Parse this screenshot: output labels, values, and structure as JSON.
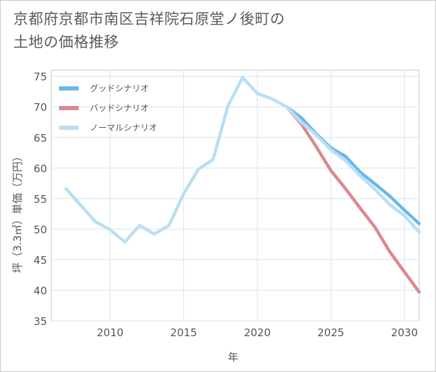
{
  "title_line1": "京都府京都市南区吉祥院石原堂ノ後町の",
  "title_line2": "土地の価格推移",
  "chart_data": {
    "type": "line",
    "title": "京都府京都市南区吉祥院石原堂ノ後町の土地の価格推移",
    "xlabel": "年",
    "ylabel": "坪（3.3㎡）単価（万円）",
    "xlim": [
      2006,
      2031
    ],
    "ylim": [
      35,
      76
    ],
    "x_ticks": [
      2010,
      2015,
      2020,
      2025,
      2030
    ],
    "y_ticks": [
      35,
      40,
      45,
      50,
      55,
      60,
      65,
      70,
      75
    ],
    "grid": true,
    "legend_position": "top-left",
    "series": [
      {
        "name": "グッドシナリオ",
        "color": "#6ab7eb",
        "x": [
          2022,
          2023,
          2024,
          2025,
          2026,
          2027,
          2028,
          2029,
          2030,
          2031
        ],
        "values": [
          70.0,
          68.2,
          65.6,
          63.3,
          61.9,
          59.3,
          57.4,
          55.4,
          53.1,
          50.9
        ]
      },
      {
        "name": "バッドシナリオ",
        "color": "#dd8890",
        "x": [
          2022,
          2023,
          2024,
          2025,
          2026,
          2027,
          2028,
          2029,
          2030,
          2031
        ],
        "values": [
          70.0,
          67.2,
          63.5,
          59.6,
          56.6,
          53.4,
          50.3,
          46.3,
          43.0,
          39.7
        ]
      },
      {
        "name": "ノーマルシナリオ",
        "color": "#badff2",
        "x": [
          2007,
          2008,
          2009,
          2010,
          2011,
          2012,
          2013,
          2014,
          2015,
          2016,
          2017,
          2018,
          2019,
          2020,
          2021,
          2022,
          2023,
          2024,
          2025,
          2026,
          2027,
          2028,
          2029,
          2030,
          2031
        ],
        "values": [
          56.6,
          53.9,
          51.2,
          49.9,
          47.9,
          50.6,
          49.2,
          50.6,
          55.8,
          59.8,
          61.4,
          70.1,
          74.8,
          72.2,
          71.3,
          70.0,
          67.5,
          65.4,
          63.0,
          61.2,
          58.7,
          56.5,
          54.0,
          52.2,
          49.5
        ]
      }
    ]
  }
}
